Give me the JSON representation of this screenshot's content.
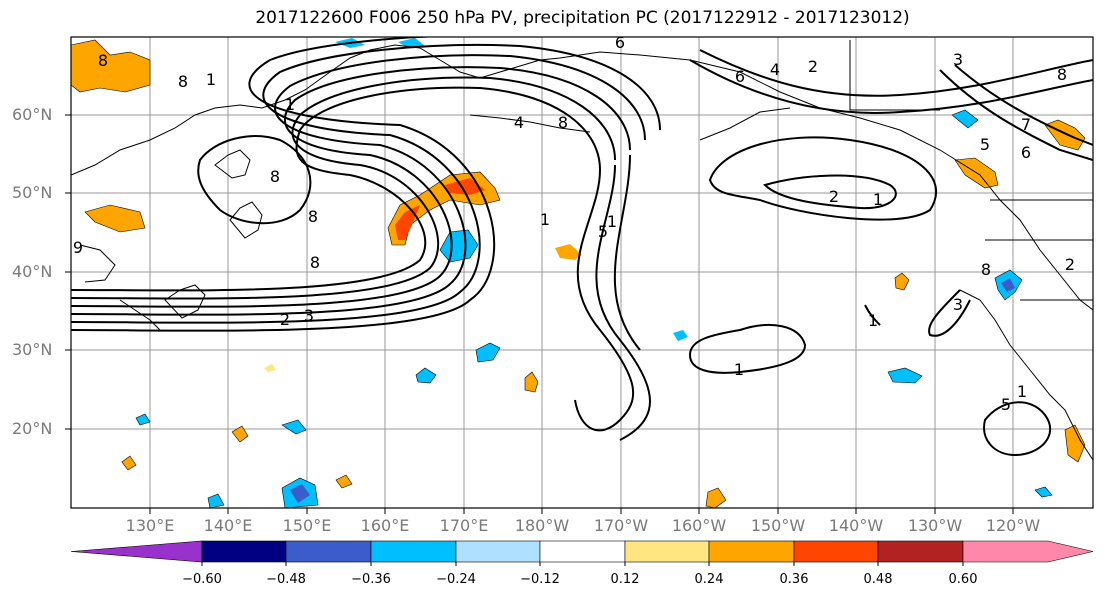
{
  "title": "2017122600 F006 250 hPa PV, precipitation PC (2017122912 - 2017123012)",
  "map": {
    "lat_labels": [
      "60°N",
      "50°N",
      "40°N",
      "30°N",
      "20°N"
    ],
    "lon_labels": [
      "130°E",
      "140°E",
      "150°E",
      "160°E",
      "170°E",
      "180°W",
      "170°W",
      "160°W",
      "150°W",
      "140°W",
      "130°W",
      "120°W"
    ],
    "contour_labels": [
      "8",
      "1",
      "1",
      "8",
      "8",
      "2",
      "3",
      "1",
      "4",
      "8",
      "1",
      "5",
      "6",
      "4",
      "2",
      "3",
      "8",
      "7",
      "6",
      "5",
      "2",
      "1",
      "1",
      "3",
      "1",
      "1",
      "8",
      "9",
      "8",
      "6",
      "8",
      "2",
      "5"
    ],
    "colors": {
      "positive_light": "#ffe680",
      "positive": "#ffa500",
      "positive_strong": "#ff4500",
      "negative": "#00bfff",
      "negative_strong": "#3c5ccc"
    }
  },
  "colorbar": {
    "ticks": [
      "−0.60",
      "−0.48",
      "−0.36",
      "−0.24",
      "−0.12",
      "0.12",
      "0.24",
      "0.36",
      "0.48",
      "0.60"
    ],
    "colors": [
      "#9932cc",
      "#000080",
      "#3c5ccc",
      "#00bfff",
      "#b0e0ff",
      "#ffffff",
      "#ffe680",
      "#ffa500",
      "#ff4500",
      "#b22222",
      "#ff88aa"
    ]
  }
}
